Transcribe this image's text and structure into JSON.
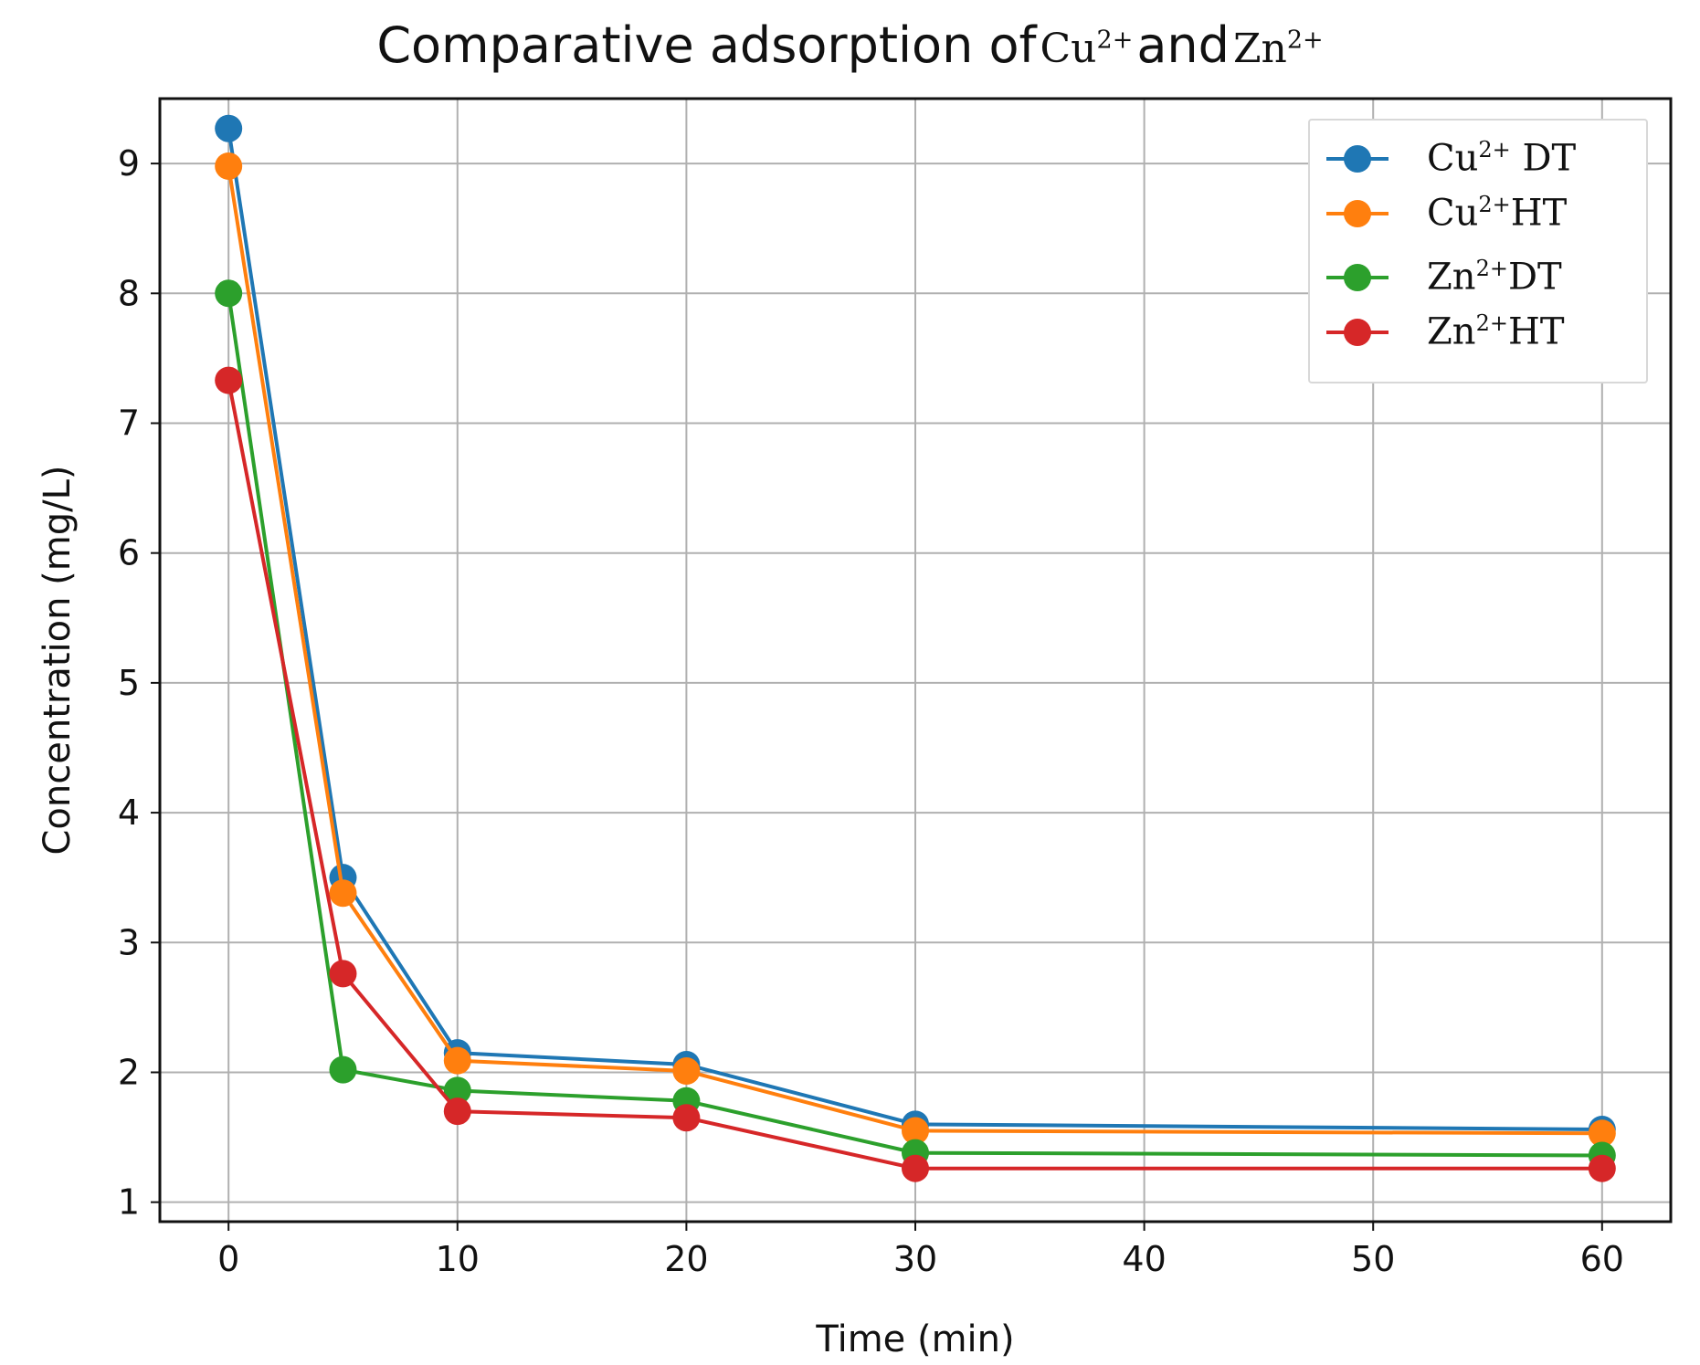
{
  "chart_data": {
    "type": "line",
    "title": {
      "prefix": "Comparative adsorption of",
      "ion1": "Cu",
      "ion1_charge": "2+",
      "conjunction": "and",
      "ion2": "Zn",
      "ion2_charge": "2+"
    },
    "xlabel": "Time (min)",
    "ylabel": "Concentration (mg/L)",
    "x": [
      0,
      5,
      10,
      20,
      30,
      60
    ],
    "xlim": [
      -3,
      63
    ],
    "ylim": [
      0.85,
      9.5
    ],
    "xticks": [
      0,
      10,
      20,
      30,
      40,
      50,
      60
    ],
    "yticks": [
      1,
      2,
      3,
      4,
      5,
      6,
      7,
      8,
      9
    ],
    "grid": true,
    "legend_position": "top-right",
    "series": [
      {
        "name": "DT",
        "ion": "Cu",
        "charge": "2+",
        "color": "#1f77b4",
        "values": [
          9.27,
          3.5,
          2.15,
          2.06,
          1.6,
          1.56
        ]
      },
      {
        "name": "HT",
        "ion": "Cu",
        "charge": "2+",
        "color": "#ff7f0e",
        "values": [
          8.98,
          3.38,
          2.09,
          2.01,
          1.55,
          1.53
        ]
      },
      {
        "name": "DT",
        "ion": "Zn",
        "charge": "2+",
        "color": "#2ca02c",
        "values": [
          8.0,
          2.02,
          1.86,
          1.78,
          1.38,
          1.36
        ]
      },
      {
        "name": "HT",
        "ion": "Zn",
        "charge": "2+",
        "color": "#d62728",
        "values": [
          7.33,
          2.76,
          1.7,
          1.65,
          1.26,
          1.26
        ]
      }
    ]
  }
}
